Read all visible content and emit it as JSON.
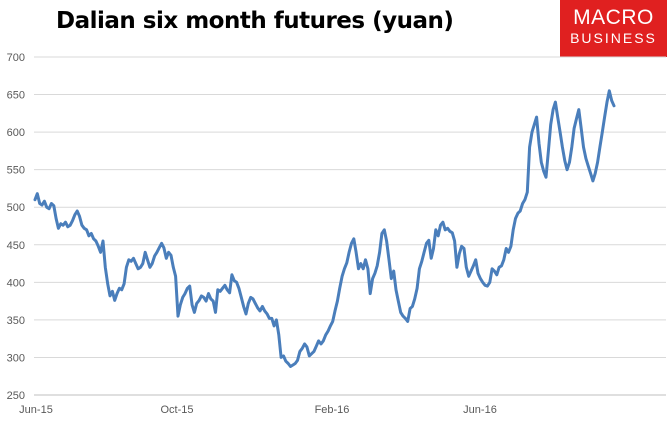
{
  "title": "Dalian six month futures (yuan)",
  "logo": {
    "line1": "MACRO",
    "line2": "BUSINESS",
    "color": "#e02020"
  },
  "chart_data": {
    "type": "line",
    "title": "Dalian six month futures (yuan)",
    "xlabel": "",
    "ylabel": "",
    "ylim": [
      250,
      700
    ],
    "yticks": [
      250,
      300,
      350,
      400,
      450,
      500,
      550,
      600,
      650,
      700
    ],
    "xticks": [
      "Jun-15",
      "Oct-15",
      "Feb-16",
      "Jun-16"
    ],
    "grid": "horizontal",
    "line_color": "#4a7ebb",
    "series": [
      {
        "values": [
          510,
          518,
          505,
          503,
          508,
          500,
          498,
          505,
          502,
          485,
          472,
          478,
          476,
          480,
          474,
          476,
          482,
          490,
          495,
          488,
          476,
          472,
          470,
          462,
          465,
          458,
          455,
          448,
          440,
          455,
          420,
          398,
          382,
          388,
          376,
          385,
          392,
          390,
          398,
          420,
          430,
          428,
          432,
          425,
          418,
          420,
          425,
          440,
          430,
          420,
          425,
          435,
          440,
          446,
          452,
          446,
          432,
          440,
          436,
          420,
          408,
          355,
          370,
          380,
          385,
          392,
          395,
          370,
          360,
          372,
          376,
          382,
          380,
          375,
          385,
          378,
          375,
          360,
          390,
          388,
          392,
          396,
          390,
          386,
          410,
          402,
          400,
          392,
          380,
          368,
          358,
          372,
          380,
          378,
          372,
          366,
          362,
          368,
          362,
          358,
          352,
          352,
          342,
          350,
          330,
          300,
          302,
          295,
          292,
          288,
          290,
          292,
          296,
          308,
          312,
          318,
          314,
          302,
          305,
          308,
          315,
          322,
          318,
          322,
          330,
          335,
          342,
          348,
          362,
          375,
          392,
          408,
          418,
          426,
          440,
          452,
          458,
          440,
          418,
          425,
          418,
          430,
          418,
          385,
          405,
          412,
          422,
          440,
          465,
          470,
          455,
          430,
          405,
          415,
          390,
          375,
          360,
          355,
          352,
          348,
          365,
          368,
          378,
          392,
          418,
          428,
          440,
          452,
          456,
          432,
          445,
          470,
          462,
          476,
          480,
          470,
          472,
          468,
          466,
          455,
          420,
          438,
          448,
          445,
          420,
          408,
          415,
          422,
          430,
          412,
          405,
          400,
          396,
          395,
          400,
          418,
          415,
          410,
          420,
          422,
          430,
          445,
          440,
          448,
          470,
          485,
          492,
          495,
          505,
          510,
          520,
          580,
          600,
          610,
          620,
          585,
          560,
          548,
          540,
          575,
          610,
          630,
          640,
          620,
          600,
          580,
          562,
          550,
          560,
          580,
          605,
          618,
          630,
          605,
          580,
          565,
          555,
          545,
          535,
          545,
          560,
          580,
          600,
          620,
          640,
          655,
          642,
          635
        ]
      }
    ]
  }
}
